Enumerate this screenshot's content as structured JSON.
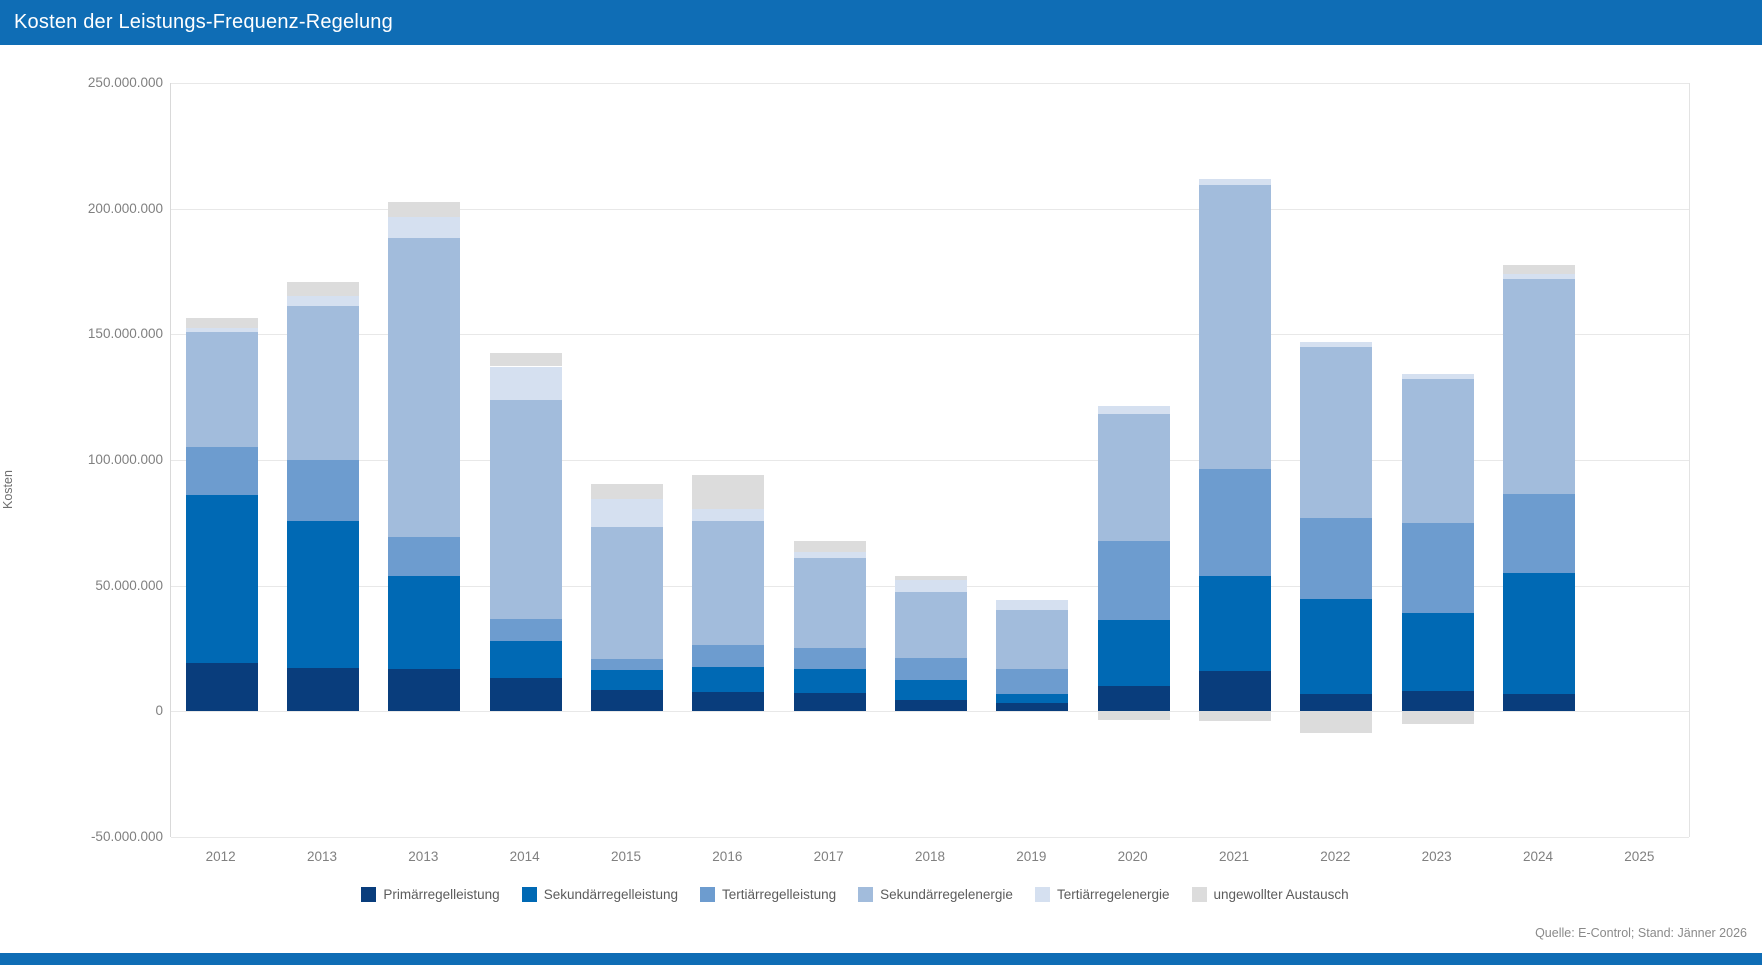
{
  "header": {
    "title": "Kosten der Leistungs-Frequenz-Regelung",
    "bar_color": "#0f6db5",
    "text_color": "#ffffff"
  },
  "footer": {
    "source_note": "Quelle: E-Control; Stand: Jänner 2026",
    "bottom_bar_color": "#0f6db5"
  },
  "chart_data": {
    "type": "bar",
    "stacked": true,
    "ylabel": "Kosten",
    "xlabel": "",
    "ylim": [
      -50000000,
      250000000
    ],
    "ytick_interval": 50000000,
    "ytick_labels": [
      "250.000.000",
      "200.000.000",
      "150.000.000",
      "100.000.000",
      "50.000.000",
      "0",
      "-50.000.000"
    ],
    "grid": true,
    "legend_position": "bottom",
    "categories": [
      "2012",
      "2013",
      "2013",
      "2014",
      "2015",
      "2016",
      "2017",
      "2018",
      "2019",
      "2020",
      "2021",
      "2022",
      "2023",
      "2024",
      "2025"
    ],
    "series": [
      {
        "name": "Primärregelleistung",
        "color": "#093d7c",
        "values": [
          19400000,
          17400000,
          16700000,
          13100000,
          8500000,
          7600000,
          7400000,
          4500000,
          3400000,
          10100000,
          16000000,
          6900000,
          8000000,
          7000000,
          0
        ]
      },
      {
        "name": "Sekundärregelleistung",
        "color": "#0069b4",
        "values": [
          66700000,
          58200000,
          37100000,
          14900000,
          7900000,
          9900000,
          9300000,
          8000000,
          3600000,
          26400000,
          38000000,
          37900000,
          31200000,
          48000000,
          0
        ]
      },
      {
        "name": "Tertiärregelleistung",
        "color": "#6d9ccf",
        "values": [
          19200000,
          24400000,
          15600000,
          8700000,
          4400000,
          9000000,
          8400000,
          8900000,
          9900000,
          31100000,
          42500000,
          32200000,
          35800000,
          31500000,
          0
        ]
      },
      {
        "name": "Sekundärregelenergie",
        "color": "#a2bcdc",
        "values": [
          45600000,
          61400000,
          118800000,
          87100000,
          52700000,
          49400000,
          36100000,
          25900000,
          23600000,
          50700000,
          113000000,
          68000000,
          57400000,
          85400000,
          0
        ]
      },
      {
        "name": "Tertiärregelenergie",
        "color": "#d5e0f0",
        "values": [
          1700000,
          4000000,
          8600000,
          13400000,
          11000000,
          4600000,
          2000000,
          4800000,
          3800000,
          3200000,
          2500000,
          2000000,
          1700000,
          2000000,
          0
        ]
      },
      {
        "name": "ungewollter Austausch",
        "color": "#dcdcdc",
        "values": [
          4000000,
          5300000,
          5800000,
          5500000,
          6000000,
          13500000,
          4400000,
          1600000,
          0,
          -3500000,
          -4000000,
          -8600000,
          -5000000,
          3600000,
          0
        ]
      }
    ]
  }
}
